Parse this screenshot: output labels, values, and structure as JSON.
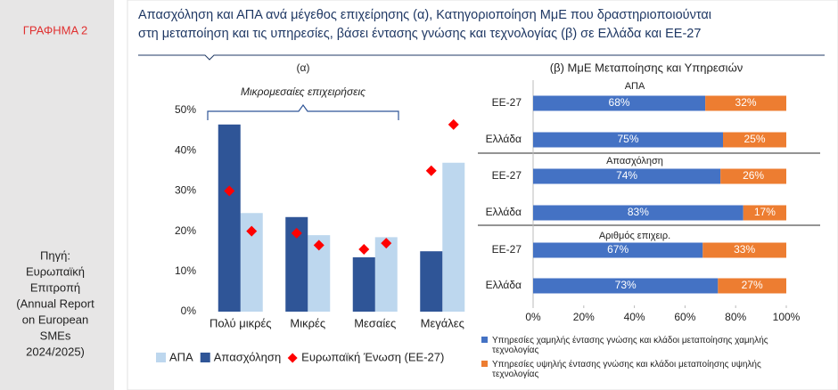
{
  "sidebar": {
    "label": "ΓΡΑΦΗΜΑ 2",
    "source_lines": [
      "Πηγή:",
      "Ευρωπαϊκή",
      "Επιτροπή",
      "(Annual Report",
      "on European",
      "SMEs",
      "2024/2025)"
    ]
  },
  "header": {
    "title_lines": [
      "Απασχόληση και ΑΠΑ ανά μέγεθος επιχείρησης (α), Κατηγοριοποίηση ΜμΕ που δραστηριοποιούνται",
      "στη μεταποίηση και τις υπηρεσίες, βάσει έντασης γνώσης και τεχνολογίας (β) σε Ελλάδα και ΕΕ-27"
    ]
  },
  "chart_data": [
    {
      "type": "bar",
      "title": "(α)",
      "annotation": "Μικρομεσαίες επιχειρήσεις",
      "categories": [
        "Πολύ μικρές",
        "Μικρές",
        "Μεσαίες",
        "Μεγάλες"
      ],
      "series": [
        {
          "name": "ΑΠΑ",
          "color": "#bdd7ee",
          "values": [
            24.5,
            19,
            18.5,
            37
          ]
        },
        {
          "name": "Απασχόληση",
          "color": "#2f5597",
          "values": [
            46.5,
            23.5,
            13.5,
            15
          ]
        },
        {
          "name": "Ευρωπαϊκή Ένωση (ΕΕ-27)",
          "color": "#ff0000",
          "marker": "diamond",
          "values": [
            [
              30,
              20
            ],
            [
              19.5,
              16.5
            ],
            [
              15.5,
              17
            ],
            [
              35,
              46.5
            ]
          ]
        }
      ],
      "ylim": [
        0,
        50
      ],
      "yticks": [
        {
          "value": 0,
          "label": "0%"
        },
        {
          "value": 10,
          "label": "10%"
        },
        {
          "value": 20,
          "label": "20%"
        },
        {
          "value": 30,
          "label": "30%"
        },
        {
          "value": 40,
          "label": "40%"
        },
        {
          "value": 50,
          "label": "50%"
        }
      ],
      "legend": "bottom"
    },
    {
      "type": "stacked-barh",
      "title": "(β) ΜμΕ Μεταποίησης και Υπηρεσιών",
      "groups": [
        "ΑΠΑ",
        "Απασχόληση",
        "Αριθμός επιχειρ."
      ],
      "categories": [
        "ΕΕ-27",
        "Ελλάδα",
        "ΕΕ-27",
        "Ελλάδα",
        "ΕΕ-27",
        "Ελλάδα"
      ],
      "series": [
        {
          "name": "Υπηρεσίες χαμηλής έντασης γνώσης και κλάδοι μεταποίησης χαμηλής τεχνολογίας",
          "color": "#4472c4",
          "values": [
            68,
            75,
            74,
            83,
            67,
            73
          ],
          "value_labels": [
            "68%",
            "75%",
            "74%",
            "83%",
            "67%",
            "73%"
          ]
        },
        {
          "name": "Υπηρεσίες υψηλής έντασης γνώσης και κλάδοι μεταποίησης υψηλής τεχνολογίας",
          "color": "#ed7d31",
          "values": [
            32,
            25,
            26,
            17,
            33,
            27
          ],
          "value_labels": [
            "32%",
            "25%",
            "26%",
            "17%",
            "33%",
            "27%"
          ]
        }
      ],
      "xlim": [
        0,
        100
      ],
      "xticks": [
        {
          "value": 0,
          "label": "0%"
        },
        {
          "value": 20,
          "label": "20%"
        },
        {
          "value": 40,
          "label": "40%"
        },
        {
          "value": 60,
          "label": "60%"
        },
        {
          "value": 80,
          "label": "80%"
        },
        {
          "value": 100,
          "label": "100%"
        }
      ],
      "legend": "bottom"
    }
  ]
}
